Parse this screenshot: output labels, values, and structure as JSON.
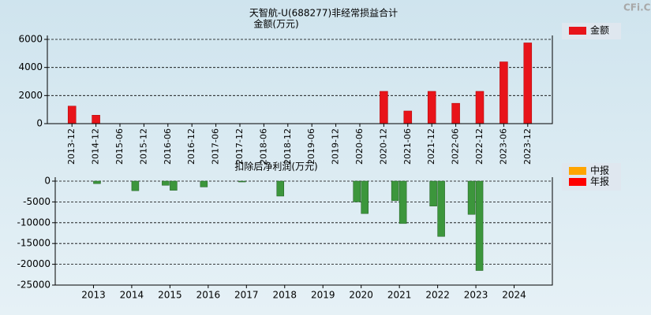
{
  "watermark": "CFi.Cn",
  "chart_data": [
    {
      "type": "bar",
      "title": "天智航-U(688277)非经常损益合计",
      "ylabel": "金额(万元)",
      "categories": [
        "2013-12",
        "2014-12",
        "2015-06",
        "2015-12",
        "2016-06",
        "2016-12",
        "2017-06",
        "2017-12",
        "2018-06",
        "2018-12",
        "2019-06",
        "2019-12",
        "2020-06",
        "2020-12",
        "2021-06",
        "2021-12",
        "2022-06",
        "2022-12",
        "2023-06",
        "2023-12"
      ],
      "series": [
        {
          "name": "金额",
          "color": "#e8141a",
          "values": [
            1250,
            600,
            0,
            0,
            0,
            0,
            0,
            0,
            0,
            0,
            0,
            0,
            0,
            2300,
            900,
            2300,
            1450,
            2300,
            4400,
            5750
          ]
        }
      ],
      "ylim": [
        0,
        6000
      ],
      "yticks": [
        0,
        2000,
        4000,
        6000
      ],
      "grid": true
    },
    {
      "type": "grouped-bar",
      "title": "扣除后净利润(万元)",
      "x": [
        2013,
        2014,
        2015,
        2016,
        2017,
        2018,
        2019,
        2020,
        2021,
        2022,
        2023,
        2024
      ],
      "xlim": [
        2012,
        2025
      ],
      "xticks": [
        2013,
        2014,
        2015,
        2016,
        2017,
        2018,
        2019,
        2020,
        2021,
        2022,
        2023,
        2024
      ],
      "series": [
        {
          "name": "中报",
          "color": "#ffa500",
          "values": [
            null,
            null,
            -1000,
            -1400,
            -200,
            -3600,
            null,
            -5000,
            -4700,
            -6000,
            -8000,
            null
          ]
        },
        {
          "name": "年报",
          "color": "#ff0000",
          "values": [
            -600,
            -2300,
            -2200,
            null,
            null,
            null,
            null,
            -7800,
            -10200,
            -13300,
            -21500,
            null
          ]
        }
      ],
      "negative_color": "#3c963c",
      "ylim": [
        -25000,
        0
      ],
      "yticks": [
        0,
        -5000,
        -10000,
        -15000,
        -20000,
        -25000
      ],
      "grid": true
    }
  ]
}
